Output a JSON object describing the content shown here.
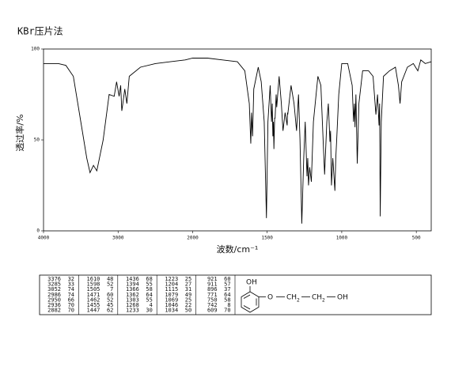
{
  "chart_data": {
    "type": "line",
    "title": "KBr压片法",
    "x_label": "波数/cm⁻¹",
    "y_label": "透过率/%",
    "xlim": [
      4000,
      400
    ],
    "ylim": [
      0,
      100
    ],
    "xticks": [
      4000,
      3000,
      2000,
      1500,
      1000,
      500
    ],
    "yticks": [
      100,
      50,
      0
    ],
    "x_scale_break": 2000,
    "x_scale_ratio": 2,
    "series": [
      {
        "color": "#000000",
        "x": [
          4000,
          3800,
          3700,
          3600,
          3500,
          3420,
          3376,
          3330,
          3285,
          3200,
          3120,
          3052,
          3020,
          2986,
          2965,
          2950,
          2936,
          2910,
          2882,
          2850,
          2700,
          2500,
          2300,
          2100,
          2000,
          1900,
          1800,
          1700,
          1650,
          1620,
          1610,
          1605,
          1598,
          1590,
          1560,
          1540,
          1520,
          1505,
          1495,
          1480,
          1471,
          1466,
          1462,
          1458,
          1455,
          1450,
          1447,
          1440,
          1436,
          1420,
          1405,
          1394,
          1380,
          1366,
          1364,
          1362,
          1340,
          1320,
          1303,
          1290,
          1280,
          1268,
          1255,
          1245,
          1233,
          1228,
          1223,
          1215,
          1204,
          1190,
          1160,
          1140,
          1125,
          1115,
          1100,
          1090,
          1079,
          1075,
          1069,
          1060,
          1046,
          1040,
          1034,
          1020,
          1000,
          960,
          930,
          921,
          915,
          911,
          905,
          896,
          885,
          860,
          820,
          790,
          771,
          760,
          750,
          746,
          742,
          735,
          720,
          680,
          640,
          620,
          609,
          598,
          560,
          520,
          490,
          470,
          440,
          400
        ],
        "values": [
          92,
          92,
          91,
          85,
          60,
          40,
          32,
          36,
          33,
          50,
          75,
          74,
          82,
          74,
          80,
          66,
          70,
          78,
          70,
          85,
          90,
          92,
          93,
          94,
          95,
          95,
          94,
          93,
          88,
          70,
          48,
          65,
          52,
          78,
          90,
          82,
          60,
          7,
          60,
          80,
          60,
          70,
          52,
          60,
          45,
          62,
          62,
          75,
          68,
          85,
          70,
          55,
          65,
          58,
          65,
          64,
          80,
          70,
          55,
          75,
          50,
          4,
          40,
          60,
          30,
          40,
          25,
          35,
          27,
          60,
          85,
          80,
          50,
          31,
          60,
          70,
          49,
          55,
          25,
          40,
          22,
          40,
          50,
          75,
          92,
          92,
          80,
          60,
          70,
          57,
          75,
          37,
          70,
          88,
          88,
          85,
          64,
          75,
          58,
          70,
          8,
          60,
          85,
          88,
          90,
          80,
          70,
          82,
          90,
          92,
          88,
          94,
          92,
          93
        ]
      }
    ]
  },
  "peak_table": [
    [
      [
        3376,
        32
      ],
      [
        3285,
        33
      ],
      [
        3052,
        74
      ],
      [
        2986,
        74
      ],
      [
        2950,
        66
      ],
      [
        2936,
        70
      ],
      [
        2882,
        70
      ]
    ],
    [
      [
        1610,
        48
      ],
      [
        1598,
        52
      ],
      [
        1505,
        7
      ],
      [
        1471,
        60
      ],
      [
        1462,
        52
      ],
      [
        1455,
        45
      ],
      [
        1447,
        62
      ]
    ],
    [
      [
        1436,
        68
      ],
      [
        1394,
        55
      ],
      [
        1366,
        58
      ],
      [
        1362,
        64
      ],
      [
        1303,
        55
      ],
      [
        1268,
        4
      ],
      [
        1233,
        30
      ]
    ],
    [
      [
        1223,
        25
      ],
      [
        1204,
        27
      ],
      [
        1115,
        31
      ],
      [
        1079,
        49
      ],
      [
        1069,
        25
      ],
      [
        1046,
        22
      ],
      [
        1034,
        50
      ]
    ],
    [
      [
        921,
        60
      ],
      [
        911,
        57
      ],
      [
        896,
        37
      ],
      [
        771,
        64
      ],
      [
        750,
        58
      ],
      [
        742,
        8
      ],
      [
        609,
        70
      ]
    ]
  ],
  "structure": {
    "hydroxyl": "OH",
    "ether": "O",
    "methylene": "CH",
    "subscript": "2",
    "terminal": "OH"
  }
}
